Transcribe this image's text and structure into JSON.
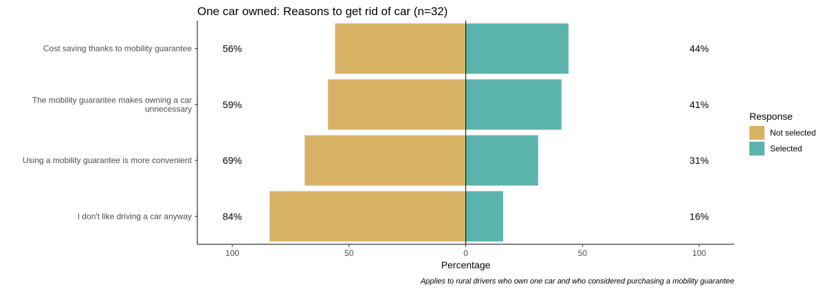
{
  "chart_data": {
    "type": "bar",
    "orientation": "horizontal-diverging",
    "title": "One car owned: Reasons to get rid of car (n=32)",
    "xlabel": "Percentage",
    "ylabel": "",
    "caption": "Applies to rural drivers who own one car and who considered purchasing a mobility guarantee",
    "categories": [
      [
        "Cost saving thanks to mobility guarantee"
      ],
      [
        "The mobility guarantee makes owning a car",
        "unnecessary"
      ],
      [
        "Using a mobility guarantee is more convenient"
      ],
      [
        "I don't like driving a car anyway"
      ]
    ],
    "series": [
      {
        "name": "Not selected",
        "color": "#D8B365",
        "direction": "left",
        "values": [
          56,
          59,
          69,
          84
        ],
        "labels": [
          "56%",
          "59%",
          "69%",
          "84%"
        ]
      },
      {
        "name": "Selected",
        "color": "#5AB4AC",
        "direction": "right",
        "values": [
          44,
          41,
          31,
          16
        ],
        "labels": [
          "44%",
          "41%",
          "31%",
          "16%"
        ]
      }
    ],
    "xlim": [
      -115,
      115
    ],
    "x_ticks": [
      -100,
      -50,
      0,
      50,
      100
    ],
    "x_tick_labels": [
      "100",
      "50",
      "0",
      "50",
      "100"
    ],
    "legend": {
      "title": "Response",
      "position": "right"
    },
    "grid": false
  }
}
